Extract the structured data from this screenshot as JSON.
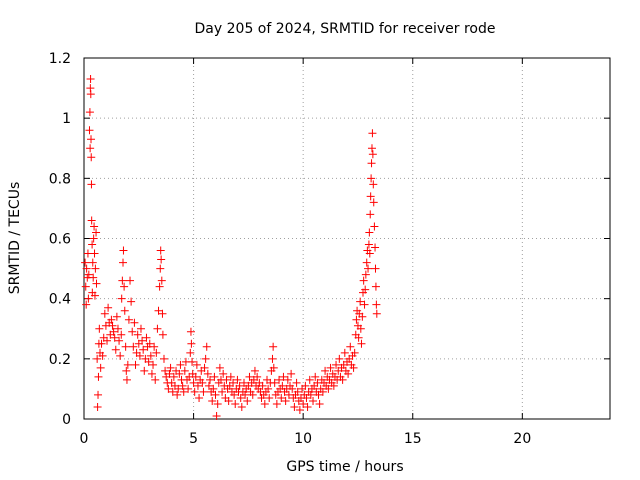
{
  "chart_data": {
    "type": "scatter",
    "title": "Day 205 of 2024, SRMTID for receiver rode",
    "xlabel": "GPS time / hours",
    "ylabel": "SRMTID / TECUs",
    "xlim": [
      0,
      24
    ],
    "ylim": [
      0,
      1.2
    ],
    "xticks": [
      0,
      5,
      10,
      15,
      20
    ],
    "xtick_labels": [
      "0",
      "5",
      "10",
      "15",
      "20"
    ],
    "yticks": [
      0,
      0.2,
      0.4,
      0.6,
      0.8,
      1,
      1.2
    ],
    "ytick_labels": [
      "0",
      "0.2",
      "0.4",
      "0.6",
      "0.8",
      "1",
      "1.2"
    ],
    "grid": true,
    "marker": "+",
    "color": "#ff0000",
    "series": [
      {
        "name": "SRMTID",
        "points": [
          [
            0.05,
            0.52
          ],
          [
            0.08,
            0.44
          ],
          [
            0.1,
            0.38
          ],
          [
            0.12,
            0.5
          ],
          [
            0.15,
            0.47
          ],
          [
            0.18,
            0.55
          ],
          [
            0.2,
            0.4
          ],
          [
            0.22,
            0.48
          ],
          [
            0.25,
            0.96
          ],
          [
            0.27,
            1.02
          ],
          [
            0.28,
            0.9
          ],
          [
            0.29,
            1.1
          ],
          [
            0.3,
            1.13
          ],
          [
            0.31,
            1.08
          ],
          [
            0.32,
            0.93
          ],
          [
            0.33,
            0.87
          ],
          [
            0.34,
            0.78
          ],
          [
            0.35,
            0.66
          ],
          [
            0.37,
            0.58
          ],
          [
            0.38,
            0.42
          ],
          [
            0.4,
            0.52
          ],
          [
            0.42,
            0.47
          ],
          [
            0.44,
            0.6
          ],
          [
            0.46,
            0.64
          ],
          [
            0.48,
            0.55
          ],
          [
            0.5,
            0.41
          ],
          [
            0.52,
            0.5
          ],
          [
            0.55,
            0.62
          ],
          [
            0.57,
            0.45
          ],
          [
            0.6,
            0.2
          ],
          [
            0.62,
            0.04
          ],
          [
            0.64,
            0.08
          ],
          [
            0.66,
            0.14
          ],
          [
            0.68,
            0.25
          ],
          [
            0.7,
            0.3
          ],
          [
            0.73,
            0.22
          ],
          [
            0.76,
            0.17
          ],
          [
            0.8,
            0.25
          ],
          [
            0.85,
            0.21
          ],
          [
            0.9,
            0.27
          ],
          [
            0.95,
            0.35
          ],
          [
            1.0,
            0.31
          ],
          [
            1.05,
            0.26
          ],
          [
            1.1,
            0.37
          ],
          [
            1.15,
            0.32
          ],
          [
            1.2,
            0.28
          ],
          [
            1.25,
            0.33
          ],
          [
            1.3,
            0.31
          ],
          [
            1.35,
            0.29
          ],
          [
            1.4,
            0.27
          ],
          [
            1.45,
            0.23
          ],
          [
            1.5,
            0.34
          ],
          [
            1.55,
            0.3
          ],
          [
            1.6,
            0.26
          ],
          [
            1.65,
            0.21
          ],
          [
            1.7,
            0.28
          ],
          [
            1.72,
            0.4
          ],
          [
            1.75,
            0.46
          ],
          [
            1.78,
            0.52
          ],
          [
            1.8,
            0.56
          ],
          [
            1.83,
            0.44
          ],
          [
            1.86,
            0.36
          ],
          [
            1.9,
            0.24
          ],
          [
            1.93,
            0.16
          ],
          [
            1.96,
            0.13
          ],
          [
            2.0,
            0.18
          ],
          [
            2.05,
            0.33
          ],
          [
            2.1,
            0.46
          ],
          [
            2.15,
            0.39
          ],
          [
            2.2,
            0.29
          ],
          [
            2.25,
            0.24
          ],
          [
            2.3,
            0.32
          ],
          [
            2.35,
            0.18
          ],
          [
            2.4,
            0.22
          ],
          [
            2.45,
            0.28
          ],
          [
            2.5,
            0.25
          ],
          [
            2.55,
            0.21
          ],
          [
            2.6,
            0.3
          ],
          [
            2.65,
            0.26
          ],
          [
            2.7,
            0.23
          ],
          [
            2.75,
            0.16
          ],
          [
            2.8,
            0.2
          ],
          [
            2.85,
            0.27
          ],
          [
            2.9,
            0.24
          ],
          [
            2.95,
            0.19
          ],
          [
            3.0,
            0.25
          ],
          [
            3.05,
            0.21
          ],
          [
            3.1,
            0.15
          ],
          [
            3.15,
            0.18
          ],
          [
            3.2,
            0.24
          ],
          [
            3.25,
            0.13
          ],
          [
            3.3,
            0.22
          ],
          [
            3.35,
            0.3
          ],
          [
            3.4,
            0.36
          ],
          [
            3.45,
            0.44
          ],
          [
            3.48,
            0.5
          ],
          [
            3.5,
            0.56
          ],
          [
            3.52,
            0.53
          ],
          [
            3.55,
            0.46
          ],
          [
            3.58,
            0.35
          ],
          [
            3.6,
            0.28
          ],
          [
            3.65,
            0.2
          ],
          [
            3.7,
            0.16
          ],
          [
            3.75,
            0.14
          ],
          [
            3.8,
            0.12
          ],
          [
            3.85,
            0.1
          ],
          [
            3.9,
            0.15
          ],
          [
            3.95,
            0.17
          ],
          [
            4.0,
            0.12
          ],
          [
            4.05,
            0.09
          ],
          [
            4.1,
            0.14
          ],
          [
            4.15,
            0.11
          ],
          [
            4.2,
            0.16
          ],
          [
            4.25,
            0.08
          ],
          [
            4.3,
            0.1
          ],
          [
            4.35,
            0.15
          ],
          [
            4.4,
            0.18
          ],
          [
            4.45,
            0.13
          ],
          [
            4.5,
            0.11
          ],
          [
            4.55,
            0.09
          ],
          [
            4.6,
            0.16
          ],
          [
            4.65,
            0.19
          ],
          [
            4.7,
            0.13
          ],
          [
            4.75,
            0.1
          ],
          [
            4.8,
            0.14
          ],
          [
            4.85,
            0.22
          ],
          [
            4.88,
            0.29
          ],
          [
            4.9,
            0.25
          ],
          [
            4.93,
            0.19
          ],
          [
            4.96,
            0.15
          ],
          [
            5.0,
            0.12
          ],
          [
            5.05,
            0.09
          ],
          [
            5.1,
            0.14
          ],
          [
            5.15,
            0.18
          ],
          [
            5.2,
            0.11
          ],
          [
            5.25,
            0.07
          ],
          [
            5.3,
            0.13
          ],
          [
            5.35,
            0.16
          ],
          [
            5.4,
            0.12
          ],
          [
            5.45,
            0.09
          ],
          [
            5.5,
            0.17
          ],
          [
            5.55,
            0.2
          ],
          [
            5.6,
            0.24
          ],
          [
            5.65,
            0.15
          ],
          [
            5.7,
            0.11
          ],
          [
            5.75,
            0.13
          ],
          [
            5.8,
            0.09
          ],
          [
            5.85,
            0.06
          ],
          [
            5.9,
            0.1
          ],
          [
            5.95,
            0.14
          ],
          [
            6.0,
            0.08
          ],
          [
            6.05,
            0.01
          ],
          [
            6.1,
            0.05
          ],
          [
            6.15,
            0.12
          ],
          [
            6.2,
            0.17
          ],
          [
            6.25,
            0.13
          ],
          [
            6.3,
            0.09
          ],
          [
            6.35,
            0.15
          ],
          [
            6.4,
            0.11
          ],
          [
            6.45,
            0.07
          ],
          [
            6.5,
            0.13
          ],
          [
            6.55,
            0.1
          ],
          [
            6.6,
            0.06
          ],
          [
            6.65,
            0.11
          ],
          [
            6.7,
            0.14
          ],
          [
            6.75,
            0.09
          ],
          [
            6.8,
            0.12
          ],
          [
            6.85,
            0.08
          ],
          [
            6.9,
            0.05
          ],
          [
            6.95,
            0.1
          ],
          [
            7.0,
            0.13
          ],
          [
            7.05,
            0.09
          ],
          [
            7.1,
            0.11
          ],
          [
            7.15,
            0.07
          ],
          [
            7.2,
            0.04
          ],
          [
            7.25,
            0.09
          ],
          [
            7.3,
            0.12
          ],
          [
            7.35,
            0.08
          ],
          [
            7.4,
            0.1
          ],
          [
            7.45,
            0.06
          ],
          [
            7.5,
            0.11
          ],
          [
            7.55,
            0.14
          ],
          [
            7.6,
            0.09
          ],
          [
            7.65,
            0.12
          ],
          [
            7.7,
            0.08
          ],
          [
            7.75,
            0.13
          ],
          [
            7.8,
            0.16
          ],
          [
            7.85,
            0.11
          ],
          [
            7.9,
            0.14
          ],
          [
            7.95,
            0.1
          ],
          [
            8.0,
            0.12
          ],
          [
            8.05,
            0.09
          ],
          [
            8.1,
            0.07
          ],
          [
            8.15,
            0.11
          ],
          [
            8.2,
            0.08
          ],
          [
            8.25,
            0.05
          ],
          [
            8.3,
            0.09
          ],
          [
            8.35,
            0.13
          ],
          [
            8.4,
            0.1
          ],
          [
            8.45,
            0.07
          ],
          [
            8.5,
            0.12
          ],
          [
            8.55,
            0.16
          ],
          [
            8.6,
            0.2
          ],
          [
            8.63,
            0.24
          ],
          [
            8.66,
            0.17
          ],
          [
            8.7,
            0.12
          ],
          [
            8.75,
            0.08
          ],
          [
            8.8,
            0.05
          ],
          [
            8.85,
            0.09
          ],
          [
            8.9,
            0.13
          ],
          [
            8.95,
            0.1
          ],
          [
            9.0,
            0.07
          ],
          [
            9.05,
            0.11
          ],
          [
            9.1,
            0.14
          ],
          [
            9.15,
            0.09
          ],
          [
            9.2,
            0.06
          ],
          [
            9.25,
            0.1
          ],
          [
            9.3,
            0.13
          ],
          [
            9.35,
            0.08
          ],
          [
            9.4,
            0.11
          ],
          [
            9.45,
            0.15
          ],
          [
            9.5,
            0.1
          ],
          [
            9.55,
            0.07
          ],
          [
            9.6,
            0.04
          ],
          [
            9.65,
            0.08
          ],
          [
            9.7,
            0.12
          ],
          [
            9.75,
            0.09
          ],
          [
            9.8,
            0.06
          ],
          [
            9.85,
            0.03
          ],
          [
            9.9,
            0.07
          ],
          [
            9.95,
            0.1
          ],
          [
            10.0,
            0.05
          ],
          [
            10.05,
            0.08
          ],
          [
            10.1,
            0.11
          ],
          [
            10.15,
            0.07
          ],
          [
            10.2,
            0.04
          ],
          [
            10.25,
            0.09
          ],
          [
            10.3,
            0.13
          ],
          [
            10.35,
            0.08
          ],
          [
            10.4,
            0.1
          ],
          [
            10.45,
            0.06
          ],
          [
            10.5,
            0.11
          ],
          [
            10.55,
            0.14
          ],
          [
            10.6,
            0.09
          ],
          [
            10.65,
            0.12
          ],
          [
            10.7,
            0.08
          ],
          [
            10.75,
            0.05
          ],
          [
            10.8,
            0.1
          ],
          [
            10.85,
            0.13
          ],
          [
            10.9,
            0.09
          ],
          [
            10.95,
            0.12
          ],
          [
            11.0,
            0.16
          ],
          [
            11.05,
            0.11
          ],
          [
            11.1,
            0.14
          ],
          [
            11.15,
            0.1
          ],
          [
            11.2,
            0.13
          ],
          [
            11.25,
            0.17
          ],
          [
            11.3,
            0.12
          ],
          [
            11.35,
            0.15
          ],
          [
            11.4,
            0.11
          ],
          [
            11.45,
            0.14
          ],
          [
            11.5,
            0.18
          ],
          [
            11.55,
            0.13
          ],
          [
            11.6,
            0.16
          ],
          [
            11.65,
            0.2
          ],
          [
            11.7,
            0.14
          ],
          [
            11.75,
            0.17
          ],
          [
            11.8,
            0.13
          ],
          [
            11.85,
            0.18
          ],
          [
            11.9,
            0.22
          ],
          [
            11.95,
            0.16
          ],
          [
            12.0,
            0.19
          ],
          [
            12.05,
            0.15
          ],
          [
            12.1,
            0.2
          ],
          [
            12.15,
            0.24
          ],
          [
            12.2,
            0.18
          ],
          [
            12.25,
            0.21
          ],
          [
            12.3,
            0.17
          ],
          [
            12.35,
            0.22
          ],
          [
            12.4,
            0.28
          ],
          [
            12.43,
            0.33
          ],
          [
            12.46,
            0.36
          ],
          [
            12.5,
            0.31
          ],
          [
            12.53,
            0.27
          ],
          [
            12.56,
            0.35
          ],
          [
            12.6,
            0.39
          ],
          [
            12.63,
            0.3
          ],
          [
            12.66,
            0.25
          ],
          [
            12.7,
            0.34
          ],
          [
            12.73,
            0.42
          ],
          [
            12.76,
            0.46
          ],
          [
            12.8,
            0.38
          ],
          [
            12.83,
            0.43
          ],
          [
            12.86,
            0.48
          ],
          [
            12.9,
            0.52
          ],
          [
            12.93,
            0.56
          ],
          [
            12.96,
            0.5
          ],
          [
            13.0,
            0.58
          ],
          [
            13.02,
            0.62
          ],
          [
            13.04,
            0.55
          ],
          [
            13.06,
            0.68
          ],
          [
            13.08,
            0.74
          ],
          [
            13.1,
            0.8
          ],
          [
            13.12,
            0.85
          ],
          [
            13.14,
            0.9
          ],
          [
            13.16,
            0.95
          ],
          [
            13.18,
            0.88
          ],
          [
            13.2,
            0.78
          ],
          [
            13.22,
            0.72
          ],
          [
            13.25,
            0.64
          ],
          [
            13.28,
            0.57
          ],
          [
            13.3,
            0.5
          ],
          [
            13.32,
            0.44
          ],
          [
            13.34,
            0.38
          ],
          [
            13.36,
            0.35
          ]
        ]
      }
    ]
  }
}
